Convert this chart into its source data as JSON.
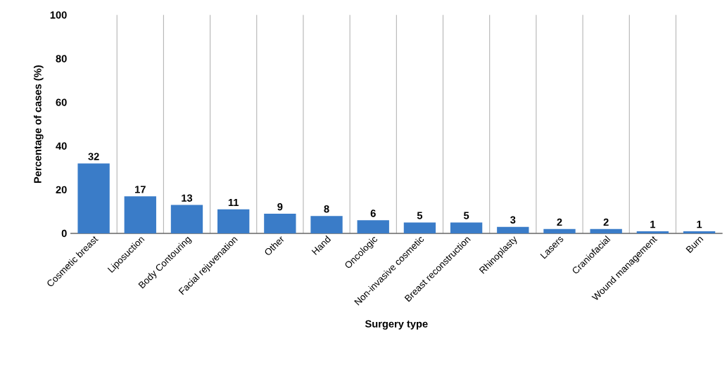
{
  "chart_data": {
    "type": "bar",
    "xlabel": "Surgery type",
    "ylabel": "Percentage of cases (%)",
    "categories": [
      "Cosmetic breast",
      "Liposuction",
      "Body Contouring",
      "Facial rejuvenation",
      "Other",
      "Hand",
      "Oncologic",
      "Non-invasive cosmetic",
      "Breast reconstruction",
      "Rhinoplasty",
      "Lasers",
      "Craniofacial",
      "Wound management",
      "Burn"
    ],
    "values": [
      32,
      17,
      13,
      11,
      9,
      8,
      6,
      5,
      5,
      3,
      2,
      2,
      1,
      1
    ],
    "color": "#3a7cc8",
    "ylim": [
      0,
      100
    ],
    "yticks": [
      0,
      20,
      40,
      60,
      80,
      100
    ],
    "grid": "x",
    "data_labels": true
  }
}
